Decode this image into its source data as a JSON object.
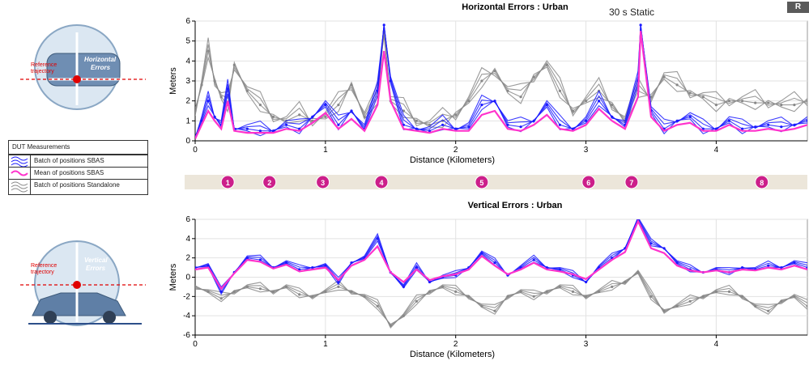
{
  "top_chart_title": "Horizontal Errors : Urban",
  "bottom_chart_title": "Vertical Errors : Urban",
  "static_annotation": "30 s Static",
  "corner_button_label": "R",
  "left_diagrams": {
    "horizontal": {
      "ref_label_1": "Reference",
      "ref_label_2": "trajectory",
      "err_label_1": "Horizontal",
      "err_label_2": "Errors"
    },
    "vertical": {
      "ref_label_1": "Reference",
      "ref_label_2": "trajectory",
      "err_label_1": "Vertical",
      "err_label_2": "Errors"
    }
  },
  "legend": {
    "header": "DUT Measurements",
    "items": [
      {
        "label": "Batch of positions SBAS",
        "color": "#1a1aff",
        "icon": "batch-wavy-lines-icon"
      },
      {
        "label": "Mean of positions SBAS",
        "color": "#ff33cc",
        "icon": "mean-wavy-line-icon"
      },
      {
        "label": "Batch of positions Standalone",
        "color": "#888888",
        "icon": "batch-wavy-lines-icon"
      }
    ]
  },
  "waypoints": {
    "labels": [
      "1",
      "2",
      "3",
      "4",
      "5",
      "6",
      "7",
      "8"
    ],
    "distances_km": [
      0.25,
      0.57,
      0.98,
      1.43,
      2.2,
      3.02,
      3.35,
      4.35
    ],
    "color": "#cc1f8a"
  },
  "chart_data": [
    {
      "type": "line",
      "title": "Horizontal Errors : Urban",
      "xlabel": "Distance (Kilometers)",
      "ylabel": "Meters",
      "xlim": [
        0,
        4.7
      ],
      "ylim": [
        0,
        6
      ],
      "xticks": [
        0,
        1,
        2,
        3,
        4
      ],
      "yticks": [
        0,
        1,
        2,
        3,
        4,
        5,
        6
      ],
      "grid": true,
      "series": [
        {
          "name": "Batch of positions Standalone",
          "color": "#888888",
          "x": [
            0,
            0.05,
            0.1,
            0.15,
            0.2,
            0.25,
            0.3,
            0.4,
            0.5,
            0.6,
            0.7,
            0.8,
            0.9,
            1.0,
            1.1,
            1.2,
            1.3,
            1.4,
            1.45,
            1.5,
            1.6,
            1.7,
            1.8,
            1.9,
            2.0,
            2.1,
            2.2,
            2.3,
            2.4,
            2.5,
            2.6,
            2.7,
            2.8,
            2.9,
            3.0,
            3.1,
            3.2,
            3.3,
            3.4,
            3.5,
            3.6,
            3.7,
            3.8,
            3.9,
            4.0,
            4.1,
            4.2,
            4.3,
            4.4,
            4.5,
            4.6,
            4.7
          ],
          "y": [
            1.5,
            2.8,
            4.5,
            3.0,
            2.2,
            1.8,
            3.8,
            2.5,
            1.8,
            1.2,
            1.0,
            1.3,
            1.0,
            1.2,
            1.8,
            2.8,
            1.2,
            2.2,
            5.5,
            2.0,
            1.5,
            1.0,
            0.8,
            1.0,
            1.3,
            2.0,
            3.0,
            3.5,
            2.5,
            2.2,
            3.2,
            3.8,
            2.5,
            1.5,
            2.0,
            2.5,
            1.8,
            1.0,
            2.5,
            2.2,
            3.2,
            2.8,
            2.4,
            2.2,
            1.8,
            2.0,
            2.0,
            1.9,
            1.9,
            1.8,
            1.8,
            2.0
          ]
        },
        {
          "name": "Batch of positions SBAS",
          "color": "#1a1aff",
          "x": [
            0,
            0.05,
            0.1,
            0.15,
            0.2,
            0.25,
            0.3,
            0.4,
            0.5,
            0.6,
            0.7,
            0.8,
            0.9,
            1.0,
            1.1,
            1.2,
            1.3,
            1.4,
            1.45,
            1.5,
            1.6,
            1.7,
            1.8,
            1.9,
            2.0,
            2.1,
            2.2,
            2.3,
            2.4,
            2.5,
            2.6,
            2.7,
            2.8,
            2.9,
            3.0,
            3.1,
            3.2,
            3.3,
            3.4,
            3.42,
            3.5,
            3.6,
            3.7,
            3.8,
            3.9,
            4.0,
            4.1,
            4.2,
            4.3,
            4.4,
            4.5,
            4.6,
            4.7
          ],
          "y": [
            0.2,
            1.0,
            2.0,
            1.2,
            0.8,
            2.6,
            0.6,
            0.6,
            0.5,
            0.5,
            0.8,
            0.6,
            1.2,
            1.8,
            0.8,
            1.5,
            0.6,
            2.5,
            5.8,
            3.0,
            0.8,
            0.6,
            0.5,
            0.8,
            0.6,
            0.7,
            1.8,
            2.0,
            0.8,
            0.7,
            1.0,
            1.8,
            0.8,
            0.6,
            1.0,
            2.0,
            1.2,
            0.8,
            3.0,
            5.8,
            1.5,
            0.6,
            1.0,
            1.2,
            0.6,
            0.6,
            1.0,
            0.6,
            0.7,
            0.8,
            0.7,
            0.8,
            1.0
          ]
        },
        {
          "name": "Mean of positions SBAS",
          "color": "#ff33cc",
          "x": [
            0,
            0.05,
            0.1,
            0.15,
            0.2,
            0.25,
            0.3,
            0.4,
            0.5,
            0.6,
            0.7,
            0.8,
            0.9,
            1.0,
            1.1,
            1.2,
            1.3,
            1.4,
            1.45,
            1.5,
            1.6,
            1.7,
            1.8,
            1.9,
            2.0,
            2.1,
            2.2,
            2.3,
            2.4,
            2.5,
            2.6,
            2.7,
            2.8,
            2.9,
            3.0,
            3.1,
            3.2,
            3.3,
            3.4,
            3.42,
            3.5,
            3.6,
            3.7,
            3.8,
            3.9,
            4.0,
            4.1,
            4.2,
            4.3,
            4.4,
            4.5,
            4.6,
            4.7
          ],
          "y": [
            0.1,
            0.8,
            1.5,
            1.0,
            0.6,
            2.0,
            0.5,
            0.4,
            0.4,
            0.4,
            0.6,
            0.5,
            0.9,
            1.4,
            0.6,
            1.1,
            0.5,
            1.8,
            4.5,
            2.0,
            0.6,
            0.5,
            0.4,
            0.6,
            0.5,
            0.5,
            1.3,
            1.5,
            0.6,
            0.5,
            0.8,
            1.3,
            0.6,
            0.5,
            0.8,
            1.6,
            1.0,
            0.6,
            2.2,
            5.5,
            1.2,
            0.5,
            0.8,
            0.9,
            0.5,
            0.5,
            0.8,
            0.5,
            0.5,
            0.6,
            0.5,
            0.6,
            0.8
          ]
        }
      ]
    },
    {
      "type": "line",
      "title": "Vertical Errors : Urban",
      "xlabel": "Distance (Kilometers)",
      "ylabel": "Meters",
      "xlim": [
        0,
        4.7
      ],
      "ylim": [
        -6,
        6
      ],
      "xticks": [
        0,
        1,
        2,
        3,
        4
      ],
      "yticks": [
        -6,
        -4,
        -2,
        0,
        2,
        4,
        6
      ],
      "grid": true,
      "series": [
        {
          "name": "Batch of positions Standalone",
          "color": "#888888",
          "x": [
            0,
            0.1,
            0.2,
            0.3,
            0.4,
            0.5,
            0.6,
            0.7,
            0.8,
            0.9,
            1.0,
            1.1,
            1.2,
            1.3,
            1.4,
            1.5,
            1.6,
            1.7,
            1.8,
            1.9,
            2.0,
            2.1,
            2.2,
            2.3,
            2.4,
            2.5,
            2.6,
            2.7,
            2.8,
            2.9,
            3.0,
            3.1,
            3.2,
            3.3,
            3.4,
            3.5,
            3.6,
            3.7,
            3.8,
            3.9,
            4.0,
            4.1,
            4.2,
            4.3,
            4.4,
            4.5,
            4.6,
            4.7
          ],
          "y": [
            -1.0,
            -1.5,
            -2.2,
            -1.5,
            -1.0,
            -1.2,
            -1.5,
            -1.0,
            -1.8,
            -2.0,
            -1.5,
            -1.0,
            -1.5,
            -2.0,
            -3.0,
            -5.0,
            -4.0,
            -2.5,
            -1.5,
            -1.0,
            -1.5,
            -2.0,
            -3.0,
            -3.5,
            -2.0,
            -1.5,
            -2.0,
            -1.5,
            -1.0,
            -1.5,
            -2.0,
            -1.5,
            -1.0,
            -0.5,
            0.5,
            -2.0,
            -3.5,
            -3.0,
            -2.5,
            -2.0,
            -1.5,
            -1.5,
            -2.0,
            -3.0,
            -3.5,
            -2.5,
            -2.0,
            -3.0
          ]
        },
        {
          "name": "Batch of positions SBAS",
          "color": "#1a1aff",
          "x": [
            0,
            0.1,
            0.2,
            0.3,
            0.4,
            0.5,
            0.6,
            0.7,
            0.8,
            0.9,
            1.0,
            1.1,
            1.2,
            1.3,
            1.4,
            1.5,
            1.6,
            1.7,
            1.8,
            1.9,
            2.0,
            2.1,
            2.2,
            2.3,
            2.4,
            2.5,
            2.6,
            2.7,
            2.8,
            2.9,
            3.0,
            3.1,
            3.2,
            3.3,
            3.4,
            3.5,
            3.6,
            3.7,
            3.8,
            3.9,
            4.0,
            4.1,
            4.2,
            4.3,
            4.4,
            4.5,
            4.6,
            4.7
          ],
          "y": [
            1.0,
            1.2,
            -1.5,
            0.5,
            2.0,
            1.8,
            1.0,
            1.5,
            0.8,
            1.0,
            1.2,
            -0.5,
            1.5,
            2.0,
            4.0,
            0.5,
            -1.0,
            1.0,
            -0.5,
            0.0,
            0.2,
            1.0,
            2.5,
            1.5,
            0.2,
            1.0,
            1.8,
            1.0,
            0.8,
            0.2,
            -0.5,
            1.0,
            2.0,
            3.0,
            6.0,
            3.5,
            3.0,
            1.5,
            0.8,
            0.5,
            0.8,
            0.5,
            1.0,
            0.8,
            1.2,
            1.0,
            1.5,
            1.0
          ]
        },
        {
          "name": "Mean of positions SBAS",
          "color": "#ff33cc",
          "x": [
            0,
            0.1,
            0.2,
            0.3,
            0.4,
            0.5,
            0.6,
            0.7,
            0.8,
            0.9,
            1.0,
            1.1,
            1.2,
            1.3,
            1.4,
            1.5,
            1.6,
            1.7,
            1.8,
            1.9,
            2.0,
            2.1,
            2.2,
            2.3,
            2.4,
            2.5,
            2.6,
            2.7,
            2.8,
            2.9,
            3.0,
            3.1,
            3.2,
            3.3,
            3.4,
            3.5,
            3.6,
            3.7,
            3.8,
            3.9,
            4.0,
            4.1,
            4.2,
            4.3,
            4.4,
            4.5,
            4.6,
            4.7
          ],
          "y": [
            0.8,
            1.0,
            -1.2,
            0.4,
            1.8,
            1.6,
            0.9,
            1.3,
            0.6,
            0.8,
            1.0,
            -0.3,
            1.2,
            1.8,
            3.2,
            0.5,
            -0.5,
            0.8,
            -0.3,
            0.1,
            0.3,
            0.8,
            2.2,
            1.2,
            0.3,
            0.8,
            1.5,
            0.8,
            0.6,
            0.3,
            -0.2,
            0.8,
            1.8,
            2.6,
            5.8,
            3.0,
            2.5,
            1.2,
            0.7,
            0.5,
            0.7,
            0.5,
            0.8,
            0.7,
            1.0,
            0.8,
            1.2,
            0.8
          ]
        }
      ]
    }
  ]
}
